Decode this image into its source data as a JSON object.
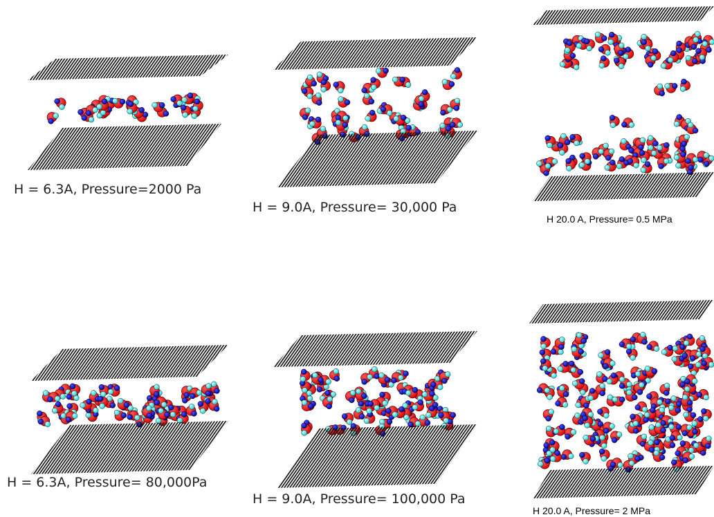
{
  "panels": [
    {
      "caption": "H = 6.3A, Pressure=2000 Pa"
    },
    {
      "caption": "H = 9.0A, Pressure= 30,000 Pa"
    },
    {
      "caption": "H 20.0 A, Pressure= 0.5 MPa"
    },
    {
      "caption": "H = 6.3A, Pressure= 80,000Pa"
    },
    {
      "caption": "H = 9.0A, Pressure= 100,000 Pa"
    },
    {
      "caption": "H 20.0 A, Pressure= 2 MPa"
    }
  ]
}
